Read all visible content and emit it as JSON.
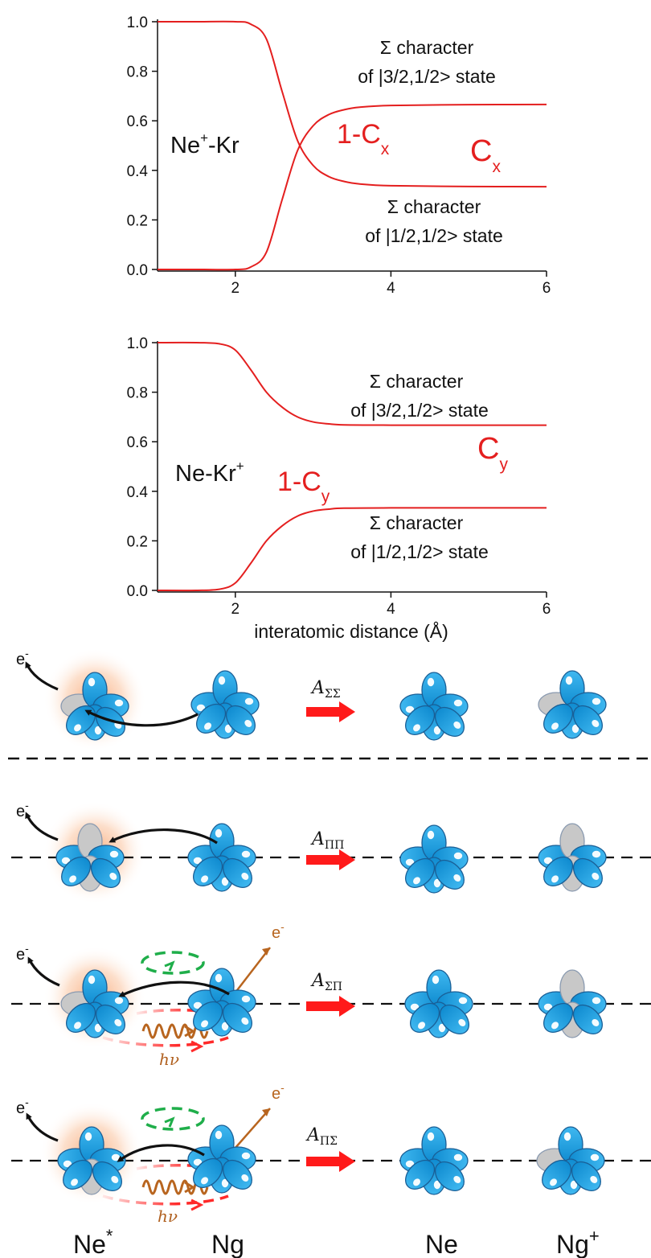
{
  "chart_data": [
    {
      "type": "line",
      "label": "Ne⁺-Kr",
      "xlim": [
        1,
        6
      ],
      "ylim": [
        0,
        1
      ],
      "xticks": [
        "2",
        "4",
        "6"
      ],
      "yticks": [
        "0.0",
        "0.2",
        "0.4",
        "0.6",
        "0.8",
        "1.0"
      ],
      "series": [
        {
          "name": "C_x",
          "x": [
            1,
            1.5,
            2,
            2.2,
            2.4,
            2.6,
            2.8,
            3.0,
            3.2,
            3.4,
            3.6,
            4,
            5,
            6
          ],
          "values": [
            1,
            1,
            1,
            0.99,
            0.93,
            0.72,
            0.52,
            0.42,
            0.375,
            0.355,
            0.345,
            0.338,
            0.335,
            0.334
          ]
        },
        {
          "name": "1-C_x",
          "x": [
            1,
            1.5,
            2,
            2.2,
            2.4,
            2.6,
            2.8,
            3.0,
            3.2,
            3.4,
            3.6,
            4,
            5,
            6
          ],
          "values": [
            0,
            0,
            0,
            0.01,
            0.07,
            0.28,
            0.48,
            0.58,
            0.625,
            0.645,
            0.655,
            0.662,
            0.665,
            0.666
          ]
        }
      ],
      "curve_labels": {
        "upper": "C",
        "upper_sub": "x",
        "lower": "1-C",
        "lower_sub": "x"
      },
      "annotations": {
        "top": {
          "line1": "Σ character",
          "line2": "of |3/2,1/2> state"
        },
        "bottom": {
          "line1": "Σ character",
          "line2": "of |1/2,1/2> state"
        }
      },
      "molecule": {
        "pre": "Ne",
        "sup": "+",
        "post": "-Kr"
      }
    },
    {
      "type": "line",
      "label": "Ne-Kr⁺",
      "xlim": [
        1,
        6
      ],
      "ylim": [
        0,
        1
      ],
      "xticks": [
        "2",
        "4",
        "6"
      ],
      "yticks": [
        "0.0",
        "0.2",
        "0.4",
        "0.6",
        "0.8",
        "1.0"
      ],
      "xlabel": "interatomic distance (Å)",
      "series": [
        {
          "name": "C_y",
          "x": [
            1,
            1.5,
            1.8,
            2.0,
            2.2,
            2.4,
            2.6,
            2.8,
            3.0,
            3.2,
            3.4,
            4,
            5,
            6
          ],
          "values": [
            1,
            1,
            0.995,
            0.97,
            0.89,
            0.8,
            0.74,
            0.7,
            0.68,
            0.672,
            0.668,
            0.667,
            0.667,
            0.667
          ]
        },
        {
          "name": "1-C_y",
          "x": [
            1,
            1.5,
            1.8,
            2.0,
            2.2,
            2.4,
            2.6,
            2.8,
            3.0,
            3.2,
            3.4,
            4,
            5,
            6
          ],
          "values": [
            0,
            0,
            0.005,
            0.03,
            0.11,
            0.2,
            0.26,
            0.3,
            0.32,
            0.328,
            0.332,
            0.333,
            0.333,
            0.333
          ]
        }
      ],
      "curve_labels": {
        "upper": "C",
        "upper_sub": "y",
        "lower": "1-C",
        "lower_sub": "y"
      },
      "annotations": {
        "top": {
          "line1": "Σ character",
          "line2": "of |3/2,1/2> state"
        },
        "bottom": {
          "line1": "Σ character",
          "line2": "of |1/2,1/2> state"
        }
      },
      "molecule": {
        "pre": "Ne-Kr",
        "sup": "+"
      }
    }
  ],
  "diagram": {
    "rows": [
      {
        "amp_base": "A",
        "amp_sub": "ΣΣ"
      },
      {
        "amp_base": "A",
        "amp_sub": "ΠΠ"
      },
      {
        "amp_base": "A",
        "amp_sub": "ΣΠ"
      },
      {
        "amp_base": "A",
        "amp_sub": "ΠΣ"
      }
    ],
    "electron": "e",
    "electron_sup": "-",
    "photon": "hν",
    "bottom_labels": {
      "ne_star": "Ne",
      "ne_star_sup": "*",
      "ng": "Ng",
      "ne": "Ne",
      "ng_plus": "Ng",
      "ng_plus_sup": "+"
    }
  },
  "colors": {
    "curve": "#e41f1f",
    "lobe": "#1aa0e0",
    "lobe_gray": "#c8c8c8",
    "arrow": "#ff1a1a",
    "green": "#1fae4a",
    "orange": "#b8651f"
  }
}
